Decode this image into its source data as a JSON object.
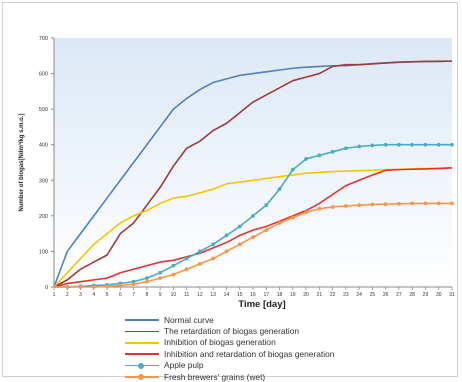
{
  "chart_data": {
    "type": "line",
    "xlabel": "Time [day]",
    "ylabel": "Number of biogas[Ndm³/kg s.m.o.]",
    "ylim": [
      0,
      700
    ],
    "yticks": [
      0,
      100,
      200,
      300,
      400,
      500,
      600,
      700
    ],
    "x": [
      1,
      2,
      3,
      4,
      5,
      6,
      7,
      8,
      9,
      10,
      11,
      12,
      13,
      14,
      15,
      16,
      17,
      18,
      19,
      20,
      21,
      22,
      23,
      24,
      25,
      26,
      27,
      28,
      29,
      30,
      31
    ],
    "grid": false,
    "legend_position": "bottom",
    "series": [
      {
        "name": "Normal curve",
        "color": "#4f81bd",
        "marker": "none",
        "values": [
          0,
          100,
          150,
          200,
          250,
          300,
          350,
          400,
          450,
          500,
          530,
          555,
          575,
          585,
          595,
          600,
          605,
          610,
          615,
          618,
          620,
          622,
          622,
          625,
          628,
          630,
          632,
          633,
          634,
          635,
          635
        ]
      },
      {
        "name": "The retardation of biogas generation",
        "color": "#9b3b3b",
        "marker": "none",
        "values": [
          0,
          20,
          50,
          70,
          90,
          150,
          180,
          230,
          280,
          340,
          390,
          410,
          440,
          460,
          490,
          520,
          540,
          560,
          580,
          590,
          600,
          620,
          625,
          625,
          627,
          630,
          632,
          633,
          634,
          634,
          635
        ]
      },
      {
        "name": "Inhibition of biogas generation",
        "color": "#f5c500",
        "marker": "none",
        "values": [
          0,
          40,
          80,
          120,
          150,
          180,
          200,
          215,
          235,
          250,
          255,
          265,
          275,
          290,
          295,
          300,
          305,
          310,
          315,
          320,
          322,
          325,
          326,
          327,
          328,
          330,
          331,
          332,
          333,
          334,
          335
        ]
      },
      {
        "name": "Inhibition and retardation of biogas generation",
        "color": "#e8312e",
        "marker": "none",
        "values": [
          0,
          10,
          15,
          20,
          25,
          40,
          50,
          60,
          70,
          75,
          85,
          95,
          110,
          125,
          145,
          160,
          170,
          185,
          200,
          215,
          235,
          260,
          285,
          300,
          315,
          328,
          330,
          331,
          332,
          333,
          335
        ]
      },
      {
        "name": "Apple pulp",
        "color": "#4bacc6",
        "marker": "dot",
        "values": [
          0,
          0,
          2,
          4,
          6,
          10,
          15,
          25,
          40,
          60,
          80,
          100,
          120,
          145,
          170,
          200,
          230,
          275,
          330,
          360,
          370,
          380,
          390,
          395,
          398,
          400,
          400,
          400,
          400,
          400,
          400
        ]
      },
      {
        "name": "Fresh brewers' grains (wet)",
        "color": "#f79646",
        "marker": "dot",
        "values": [
          0,
          0,
          0,
          0,
          2,
          4,
          8,
          15,
          25,
          35,
          50,
          65,
          80,
          100,
          120,
          140,
          160,
          180,
          195,
          210,
          220,
          225,
          228,
          230,
          232,
          233,
          234,
          235,
          235,
          235,
          235
        ]
      }
    ]
  }
}
